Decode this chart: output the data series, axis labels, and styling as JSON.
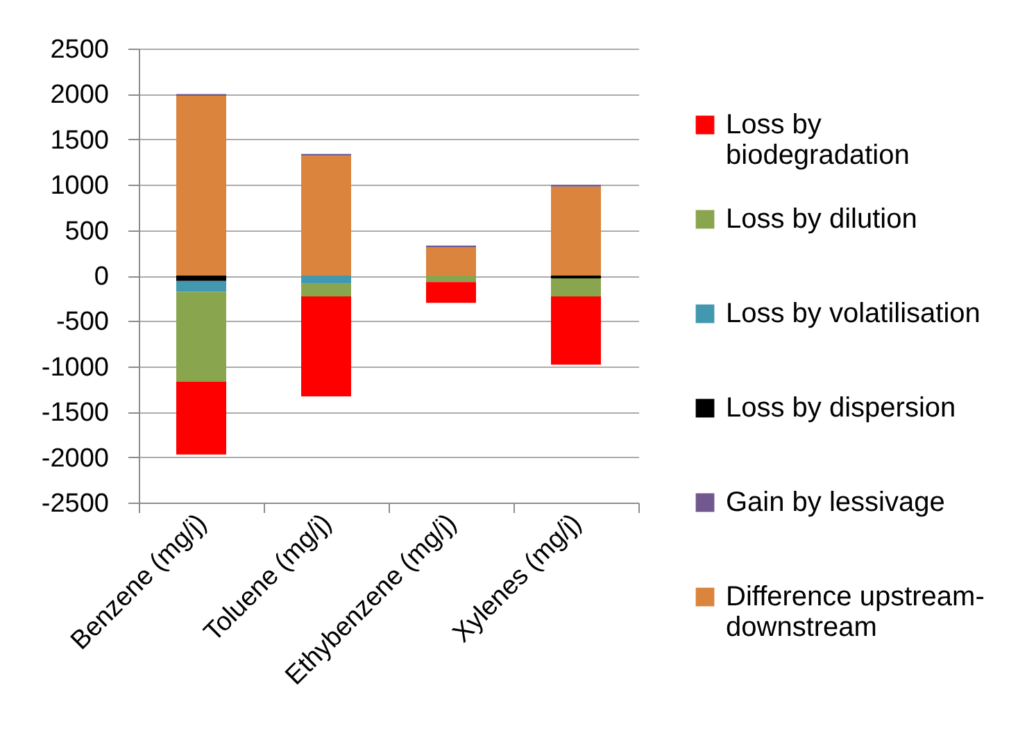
{
  "chart_data": {
    "type": "bar",
    "stacked": true,
    "categories": [
      "Benzene (mg/j)",
      "Toluene (mg/j)",
      "Ethybenzene (mg/j)",
      "Xylenes (mg/j)"
    ],
    "series": [
      {
        "name": "Difference upstream-downstream",
        "color": "#db843d",
        "values": [
          1980,
          1320,
          310,
          980
        ]
      },
      {
        "name": "Gain by lessivage",
        "color": "#71588f",
        "values": [
          20,
          20,
          20,
          20
        ]
      },
      {
        "name": "Loss by dispersion",
        "color": "#000000",
        "values": [
          -60,
          null,
          null,
          -30
        ]
      },
      {
        "name": "Loss by volatilisation",
        "color": "#4198af",
        "values": [
          -120,
          -90,
          null,
          null
        ]
      },
      {
        "name": "Loss by dilution",
        "color": "#89a54e",
        "values": [
          -990,
          -140,
          -70,
          -200
        ]
      },
      {
        "name": "Loss by biodegradation",
        "color": "#ff0000",
        "values": [
          -800,
          -1100,
          -230,
          -750
        ]
      }
    ],
    "ylim": [
      -2500,
      2500
    ],
    "yticks": [
      -2500,
      -2000,
      -1500,
      -1000,
      -500,
      0,
      500,
      1000,
      1500,
      2000,
      2500
    ],
    "grid": "y",
    "legend": "right"
  }
}
